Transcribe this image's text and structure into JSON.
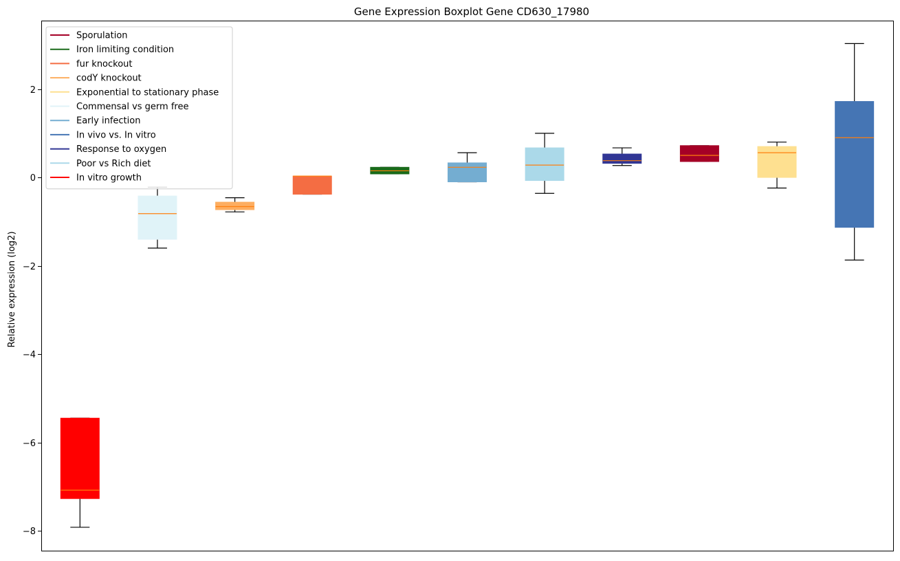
{
  "chart_data": {
    "type": "boxplot",
    "title": "Gene Expression Boxplot Gene CD630_17980",
    "xlabel": "",
    "ylabel": "Relative expression (log2)",
    "ylim": [
      -8.45,
      3.55
    ],
    "yticks": [
      -8,
      -6,
      -4,
      -2,
      0,
      2
    ],
    "ytick_labels": [
      "−8",
      "−6",
      "−4",
      "−2",
      "0",
      "2"
    ],
    "grid": false,
    "legend_location": "upper-left",
    "median_color": "#ff7f0e",
    "series": [
      {
        "name": "In vitro growth",
        "color": "#ff0000",
        "whisker_low": -7.92,
        "q1": -7.27,
        "median": -7.08,
        "q3": -5.45,
        "whisker_high": -5.45
      },
      {
        "name": "Commensal vs germ free",
        "color": "#e0f3f8",
        "whisker_low": -1.6,
        "q1": -1.4,
        "median": -0.82,
        "q3": -0.42,
        "whisker_high": -0.22
      },
      {
        "name": "codY knockout",
        "color": "#fdae61",
        "whisker_low": -0.78,
        "q1": -0.73,
        "median": -0.66,
        "q3": -0.56,
        "whisker_high": -0.46
      },
      {
        "name": "fur knockout",
        "color": "#f46d43",
        "whisker_low": -0.38,
        "q1": -0.38,
        "median": 0.03,
        "q3": 0.03,
        "whisker_high": 0.03
      },
      {
        "name": "Iron limiting condition",
        "color": "#1a6b1a",
        "whisker_low": 0.08,
        "q1": 0.08,
        "median": 0.15,
        "q3": 0.23,
        "whisker_high": 0.23
      },
      {
        "name": "Early infection",
        "color": "#74add1",
        "whisker_low": -0.1,
        "q1": -0.1,
        "median": 0.23,
        "q3": 0.33,
        "whisker_high": 0.56
      },
      {
        "name": "Poor vs Rich diet",
        "color": "#abd9e9",
        "whisker_low": -0.36,
        "q1": -0.07,
        "median": 0.28,
        "q3": 0.67,
        "whisker_high": 1.0
      },
      {
        "name": "Response to oxygen",
        "color": "#313695",
        "whisker_low": 0.27,
        "q1": 0.32,
        "median": 0.38,
        "q3": 0.53,
        "whisker_high": 0.67
      },
      {
        "name": "Sporulation",
        "color": "#a50026",
        "whisker_low": 0.36,
        "q1": 0.36,
        "median": 0.5,
        "q3": 0.72,
        "whisker_high": 0.72
      },
      {
        "name": "Exponential to stationary phase",
        "color": "#fee090",
        "whisker_low": -0.24,
        "q1": 0.0,
        "median": 0.56,
        "q3": 0.7,
        "whisker_high": 0.8
      },
      {
        "name": "In vivo vs. In vitro",
        "color": "#4575b4",
        "whisker_low": -1.87,
        "q1": -1.13,
        "median": 0.9,
        "q3": 1.72,
        "whisker_high": 3.03
      }
    ],
    "legend": [
      {
        "label": "Sporulation",
        "color": "#a50026"
      },
      {
        "label": "Iron limiting condition",
        "color": "#1a6b1a"
      },
      {
        "label": "fur knockout",
        "color": "#f46d43"
      },
      {
        "label": "codY knockout",
        "color": "#fdae61"
      },
      {
        "label": "Exponential to stationary phase",
        "color": "#fee090"
      },
      {
        "label": "Commensal vs germ free",
        "color": "#e0f3f8"
      },
      {
        "label": "Early infection",
        "color": "#74add1"
      },
      {
        "label": "In vivo vs. In vitro",
        "color": "#4575b4"
      },
      {
        "label": "Response to oxygen",
        "color": "#313695"
      },
      {
        "label": "Poor vs Rich diet",
        "color": "#abd9e9"
      },
      {
        "label": "In vitro growth",
        "color": "#ff0000"
      }
    ]
  }
}
